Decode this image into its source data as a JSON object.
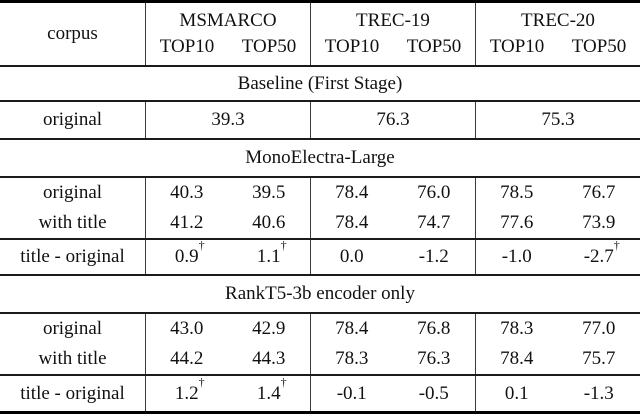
{
  "table": {
    "header": {
      "corpus_label": "corpus",
      "groups": [
        {
          "name": "MSMARCO",
          "top10": "TOP10",
          "top50": "TOP50"
        },
        {
          "name": "TREC-19",
          "top10": "TOP10",
          "top50": "TOP50"
        },
        {
          "name": "TREC-20",
          "top10": "TOP10",
          "top50": "TOP50"
        }
      ]
    },
    "sections": [
      {
        "title": "Baseline (First Stage)",
        "baseline_row": {
          "label": "original",
          "values": [
            "39.3",
            "76.3",
            "75.3"
          ]
        }
      },
      {
        "title": "MonoElectra-Large",
        "rows": [
          {
            "label": "original",
            "values": [
              "40.3",
              "39.5",
              "78.4",
              "76.0",
              "78.5",
              "76.7"
            ]
          },
          {
            "label": "with title",
            "values": [
              "41.2",
              "40.6",
              "78.4",
              "74.7",
              "77.6",
              "73.9"
            ]
          }
        ],
        "delta": {
          "label": "title - original",
          "values": [
            "0.9",
            "1.1",
            "0.0",
            "-1.2",
            "-1.0",
            "-2.7"
          ],
          "daggers": [
            "†",
            "†",
            "",
            "",
            "",
            "†"
          ]
        }
      },
      {
        "title": "RankT5-3b encoder only",
        "rows": [
          {
            "label": "original",
            "values": [
              "43.0",
              "42.9",
              "78.4",
              "76.8",
              "78.3",
              "77.0"
            ]
          },
          {
            "label": "with title",
            "values": [
              "44.2",
              "44.3",
              "78.3",
              "76.3",
              "78.4",
              "75.7"
            ]
          }
        ],
        "delta": {
          "label": "title - original",
          "values": [
            "1.2",
            "1.4",
            "-0.1",
            "-0.5",
            "0.1",
            "-1.3"
          ],
          "daggers": [
            "†",
            "†",
            "",
            "",
            "",
            ""
          ]
        }
      }
    ]
  }
}
